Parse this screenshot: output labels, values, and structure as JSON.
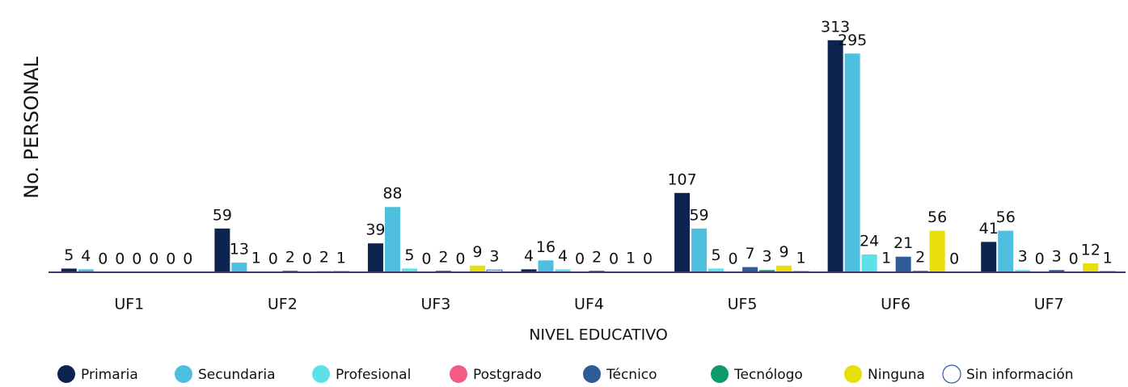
{
  "chart_data": {
    "type": "bar",
    "x_label": "NIVEL EDUCATIVO",
    "y_label": "No. PERSONAL",
    "categories": [
      "UF1",
      "UF2",
      "UF3",
      "UF4",
      "UF5",
      "UF6",
      "UF7"
    ],
    "series": [
      {
        "name": "Primaria",
        "color": "#0d2451",
        "values": [
          5,
          59,
          39,
          4,
          107,
          313,
          41
        ]
      },
      {
        "name": "Secundaria",
        "color": "#4fbfdf",
        "values": [
          4,
          13,
          88,
          16,
          59,
          295,
          56
        ]
      },
      {
        "name": "Profesional",
        "color": "#5ee0e8",
        "values": [
          0,
          1,
          5,
          4,
          5,
          24,
          3
        ]
      },
      {
        "name": "Postgrado",
        "color": "#f25c85",
        "values": [
          0,
          0,
          0,
          0,
          0,
          1,
          0
        ]
      },
      {
        "name": "Técnico",
        "color": "#2f5b97",
        "values": [
          0,
          2,
          2,
          2,
          7,
          21,
          3
        ]
      },
      {
        "name": "Tecnólogo",
        "color": "#0f9a6e",
        "values": [
          0,
          0,
          0,
          0,
          3,
          2,
          0
        ]
      },
      {
        "name": "Ninguna",
        "color": "#e8de0a",
        "values": [
          0,
          2,
          9,
          1,
          9,
          56,
          12
        ]
      },
      {
        "name": "Sin información",
        "color": "#ffffff",
        "values": [
          0,
          1,
          3,
          0,
          1,
          0,
          1
        ]
      }
    ],
    "ylim": [
      0,
      340
    ],
    "legend": "bottom"
  }
}
